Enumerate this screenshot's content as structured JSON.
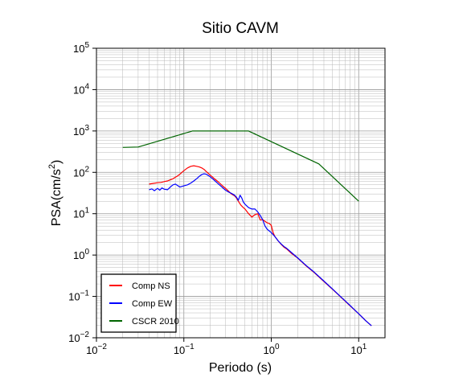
{
  "chart_data": {
    "type": "line",
    "title": "Sitio CAVM",
    "xlabel": "Periodo (s)",
    "ylabel_base": "PSA(cm/s",
    "ylabel_sup": "2",
    "ylabel_close": ")",
    "xscale": "log",
    "yscale": "log",
    "xlim": [
      0.01,
      20
    ],
    "ylim": [
      0.01,
      100000
    ],
    "grid": true,
    "legend_position": "bottom-left",
    "x_ticks": [
      {
        "base": "10",
        "exp": "−2",
        "value": 0.01
      },
      {
        "base": "10",
        "exp": "−1",
        "value": 0.1
      },
      {
        "base": "10",
        "exp": "0",
        "value": 1
      },
      {
        "base": "10",
        "exp": "1",
        "value": 10
      }
    ],
    "y_ticks": [
      {
        "base": "10",
        "exp": "−2",
        "value": 0.01
      },
      {
        "base": "10",
        "exp": "−1",
        "value": 0.1
      },
      {
        "base": "10",
        "exp": "0",
        "value": 1
      },
      {
        "base": "10",
        "exp": "1",
        "value": 10
      },
      {
        "base": "10",
        "exp": "2",
        "value": 100
      },
      {
        "base": "10",
        "exp": "3",
        "value": 1000
      },
      {
        "base": "10",
        "exp": "4",
        "value": 10000
      },
      {
        "base": "10",
        "exp": "5",
        "value": 100000
      }
    ],
    "series": [
      {
        "name": "Comp NS",
        "color": "#ff0000",
        "points": [
          [
            0.04,
            52
          ],
          [
            0.045,
            54
          ],
          [
            0.05,
            56
          ],
          [
            0.055,
            57
          ],
          [
            0.06,
            60
          ],
          [
            0.065,
            62
          ],
          [
            0.07,
            66
          ],
          [
            0.075,
            70
          ],
          [
            0.08,
            76
          ],
          [
            0.085,
            82
          ],
          [
            0.09,
            90
          ],
          [
            0.1,
            110
          ],
          [
            0.11,
            128
          ],
          [
            0.12,
            140
          ],
          [
            0.13,
            144
          ],
          [
            0.14,
            140
          ],
          [
            0.15,
            135
          ],
          [
            0.16,
            128
          ],
          [
            0.17,
            118
          ],
          [
            0.18,
            105
          ],
          [
            0.2,
            86
          ],
          [
            0.22,
            72
          ],
          [
            0.25,
            58
          ],
          [
            0.28,
            46
          ],
          [
            0.3,
            41
          ],
          [
            0.32,
            36
          ],
          [
            0.35,
            30
          ],
          [
            0.38,
            27
          ],
          [
            0.4,
            24
          ],
          [
            0.42,
            20
          ],
          [
            0.45,
            16
          ],
          [
            0.48,
            14
          ],
          [
            0.5,
            13
          ],
          [
            0.55,
            10
          ],
          [
            0.6,
            8.3
          ],
          [
            0.65,
            9.5
          ],
          [
            0.7,
            10
          ],
          [
            0.75,
            7
          ],
          [
            0.8,
            7.2
          ],
          [
            0.85,
            6.5
          ],
          [
            0.9,
            6
          ],
          [
            0.95,
            5.8
          ],
          [
            1.0,
            5.2
          ],
          [
            1.05,
            3.5
          ],
          [
            1.1,
            2.8
          ],
          [
            1.2,
            2.2
          ],
          [
            1.3,
            1.8
          ],
          [
            1.4,
            1.55
          ],
          [
            1.5,
            1.4
          ],
          [
            1.7,
            1.1
          ],
          [
            2,
            0.85
          ],
          [
            2.5,
            0.55
          ],
          [
            3,
            0.4
          ],
          [
            4,
            0.23
          ],
          [
            5,
            0.15
          ],
          [
            6,
            0.105
          ],
          [
            7,
            0.077
          ],
          [
            8,
            0.059
          ],
          [
            10,
            0.038
          ],
          [
            12,
            0.026
          ],
          [
            14,
            0.0195
          ]
        ]
      },
      {
        "name": "Comp EW",
        "color": "#0000ff",
        "points": [
          [
            0.04,
            38
          ],
          [
            0.043,
            40
          ],
          [
            0.046,
            36
          ],
          [
            0.05,
            41
          ],
          [
            0.053,
            37
          ],
          [
            0.056,
            42
          ],
          [
            0.06,
            39
          ],
          [
            0.065,
            38
          ],
          [
            0.07,
            44
          ],
          [
            0.075,
            50
          ],
          [
            0.08,
            52
          ],
          [
            0.085,
            48
          ],
          [
            0.09,
            44
          ],
          [
            0.1,
            47
          ],
          [
            0.11,
            50
          ],
          [
            0.12,
            55
          ],
          [
            0.13,
            62
          ],
          [
            0.14,
            70
          ],
          [
            0.15,
            80
          ],
          [
            0.16,
            88
          ],
          [
            0.17,
            92
          ],
          [
            0.18,
            90
          ],
          [
            0.19,
            84
          ],
          [
            0.2,
            78
          ],
          [
            0.22,
            66
          ],
          [
            0.25,
            52
          ],
          [
            0.28,
            42
          ],
          [
            0.3,
            37
          ],
          [
            0.32,
            34
          ],
          [
            0.35,
            31
          ],
          [
            0.38,
            28
          ],
          [
            0.4,
            25
          ],
          [
            0.42,
            21
          ],
          [
            0.44,
            28
          ],
          [
            0.46,
            24
          ],
          [
            0.48,
            19
          ],
          [
            0.5,
            17
          ],
          [
            0.55,
            14
          ],
          [
            0.6,
            13
          ],
          [
            0.65,
            13
          ],
          [
            0.7,
            11
          ],
          [
            0.75,
            9
          ],
          [
            0.8,
            7
          ],
          [
            0.85,
            5
          ],
          [
            0.9,
            4.2
          ],
          [
            1.0,
            3.5
          ],
          [
            1.1,
            2.8
          ],
          [
            1.2,
            2.2
          ],
          [
            1.3,
            1.85
          ],
          [
            1.4,
            1.6
          ],
          [
            1.5,
            1.45
          ],
          [
            1.7,
            1.15
          ],
          [
            2,
            0.86
          ],
          [
            2.5,
            0.56
          ],
          [
            3,
            0.41
          ],
          [
            4,
            0.235
          ],
          [
            5,
            0.152
          ],
          [
            6,
            0.106
          ],
          [
            7,
            0.078
          ],
          [
            8,
            0.06
          ],
          [
            10,
            0.038
          ],
          [
            12,
            0.026
          ],
          [
            14,
            0.0195
          ]
        ]
      },
      {
        "name": "CSCR 2010",
        "color": "#006400",
        "points": [
          [
            0.02,
            400
          ],
          [
            0.03,
            410
          ],
          [
            0.125,
            1000
          ],
          [
            0.55,
            1000
          ],
          [
            3.5,
            160
          ],
          [
            10,
            20
          ]
        ]
      }
    ]
  }
}
